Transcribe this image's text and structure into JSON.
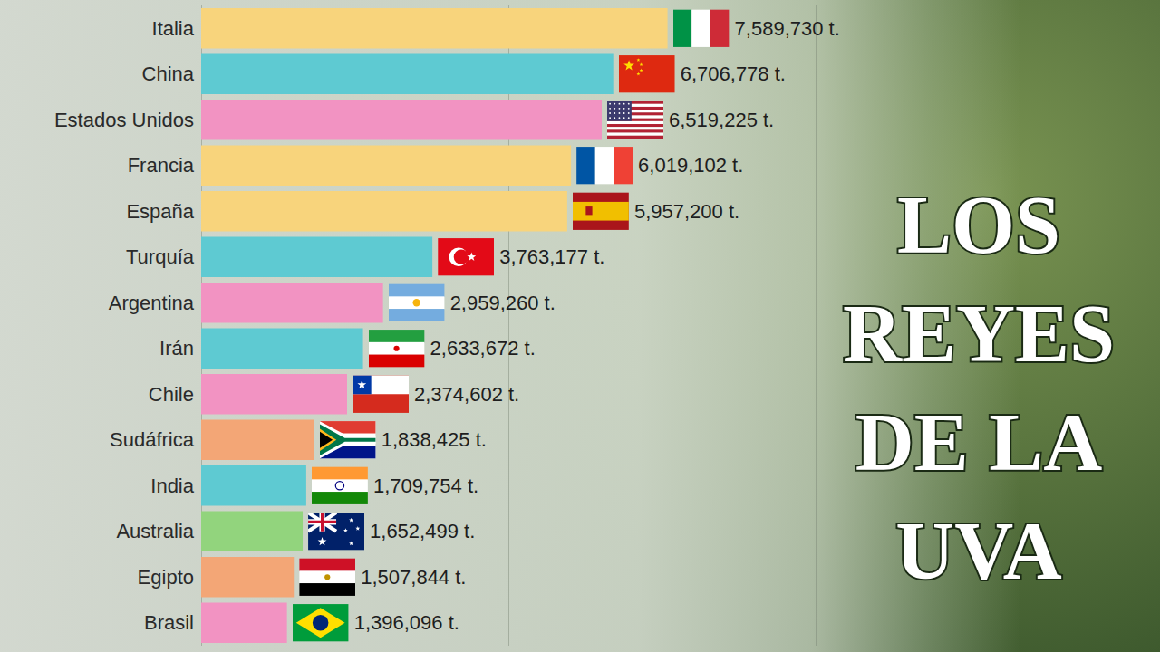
{
  "chart_data": {
    "type": "bar",
    "title": "LOS REYES DE LA UVA",
    "orientation": "horizontal",
    "categories": [
      "Italia",
      "China",
      "Estados Unidos",
      "Francia",
      "España",
      "Turquía",
      "Argentina",
      "Irán",
      "Chile",
      "Sudáfrica",
      "India",
      "Australia",
      "Egipto",
      "Brasil"
    ],
    "values": [
      7589730,
      6706778,
      6519225,
      6019102,
      5957200,
      3763177,
      2959260,
      2633672,
      2374602,
      1838425,
      1709754,
      1652499,
      1507844,
      1396096
    ],
    "value_labels": [
      "7,589,730 t.",
      "6,706,778 t.",
      "6,519,225 t.",
      "6,019,102 t.",
      "5,957,200 t.",
      "3,763,177 t.",
      "2,959,260 t.",
      "2,633,672 t.",
      "2,374,602 t.",
      "1,838,425 t.",
      "1,709,754 t.",
      "1,652,499 t.",
      "1,507,844 t.",
      "1,396,096 t."
    ],
    "colors": [
      "#f8d47c",
      "#5ecad2",
      "#f293c2",
      "#f8d47c",
      "#f8d47c",
      "#5ecad2",
      "#f293c2",
      "#5ecad2",
      "#f293c2",
      "#f3a676",
      "#5ecad2",
      "#92d47d",
      "#f3a676",
      "#f293c2"
    ],
    "xlim": [
      0,
      10000000
    ],
    "xticks": [
      0,
      5000000,
      10000000
    ],
    "grid": true,
    "tick_labels": "y",
    "data_labels": true
  }
}
